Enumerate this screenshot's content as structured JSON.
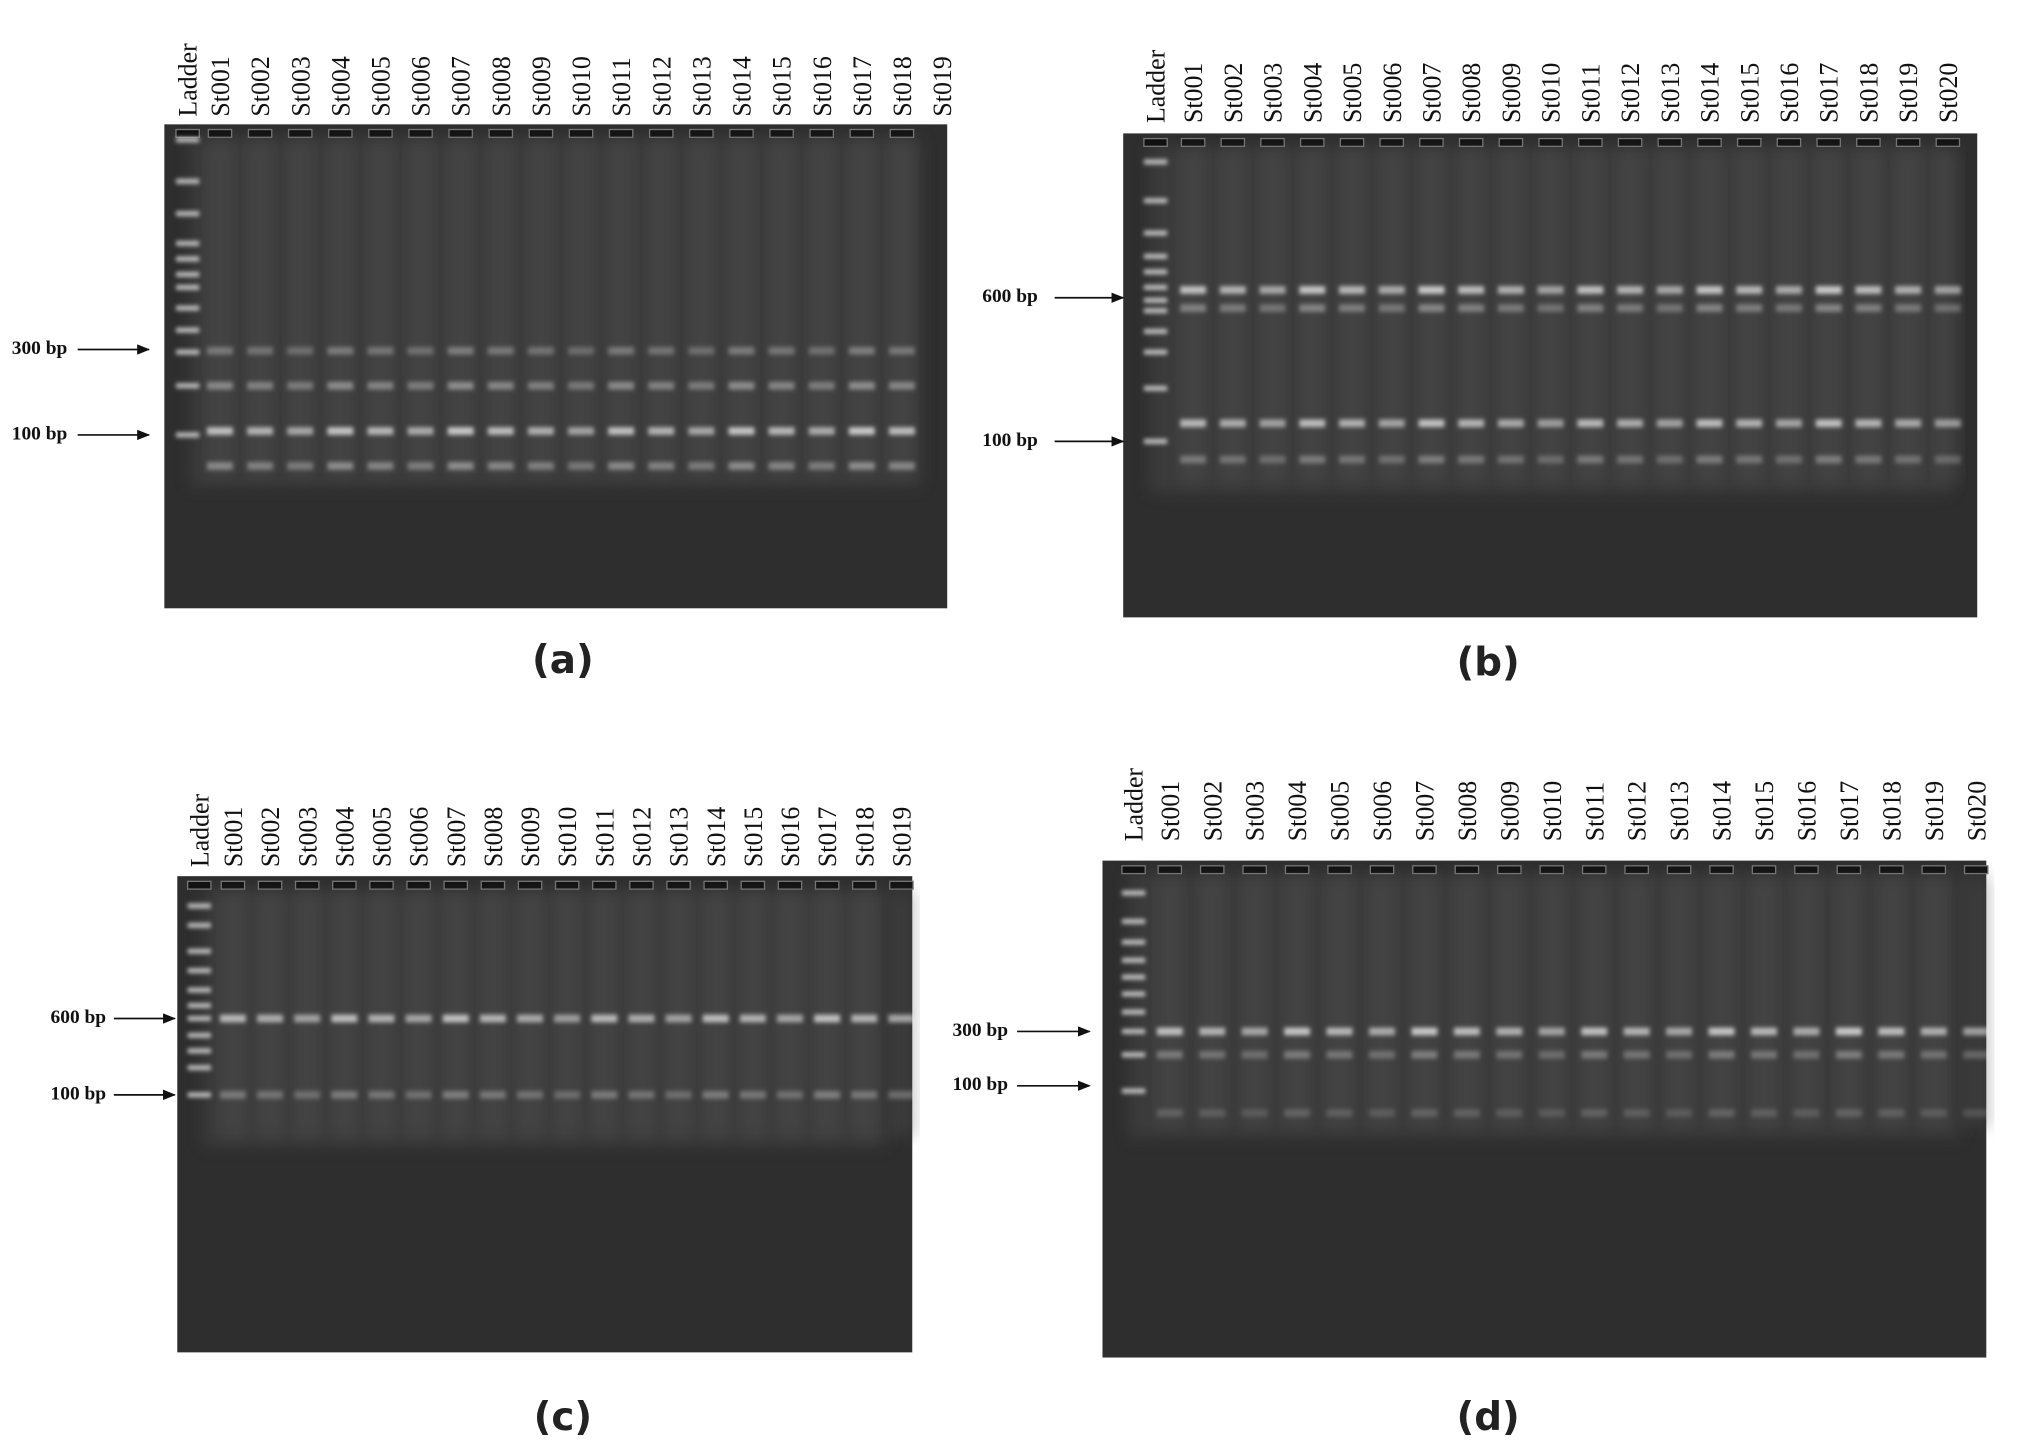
{
  "panels": [
    {
      "caption": "(a)",
      "lanes": [
        "Ladder",
        "St001",
        "St002",
        "St003",
        "St004",
        "St005",
        "St006",
        "St007",
        "St008",
        "St009",
        "St010",
        "St011",
        "St012",
        "St013",
        "St014",
        "St015",
        "St016",
        "St017",
        "St018",
        "St019"
      ],
      "markers": [
        "300 bp",
        "100 bp"
      ]
    },
    {
      "caption": "(b)",
      "lanes": [
        "Ladder",
        "St001",
        "St002",
        "St003",
        "St004",
        "St005",
        "St006",
        "St007",
        "St008",
        "St009",
        "St010",
        "St011",
        "St012",
        "St013",
        "St014",
        "St015",
        "St016",
        "St017",
        "St018",
        "St019",
        "St020"
      ],
      "markers": [
        "600 bp",
        "100 bp"
      ]
    },
    {
      "caption": "(c)",
      "lanes": [
        "Ladder",
        "St001",
        "St002",
        "St003",
        "St004",
        "St005",
        "St006",
        "St007",
        "St008",
        "St009",
        "St010",
        "St011",
        "St012",
        "St013",
        "St014",
        "St015",
        "St016",
        "St017",
        "St018",
        "St019"
      ],
      "markers": [
        "600 bp",
        "100 bp"
      ]
    },
    {
      "caption": "(d)",
      "lanes": [
        "Ladder",
        "St001",
        "St002",
        "St003",
        "St004",
        "St005",
        "St006",
        "St007",
        "St008",
        "St009",
        "St010",
        "St011",
        "St012",
        "St013",
        "St014",
        "St015",
        "St016",
        "St017",
        "St018",
        "St019",
        "St020"
      ],
      "markers": [
        "300 bp",
        "100 bp"
      ]
    }
  ]
}
